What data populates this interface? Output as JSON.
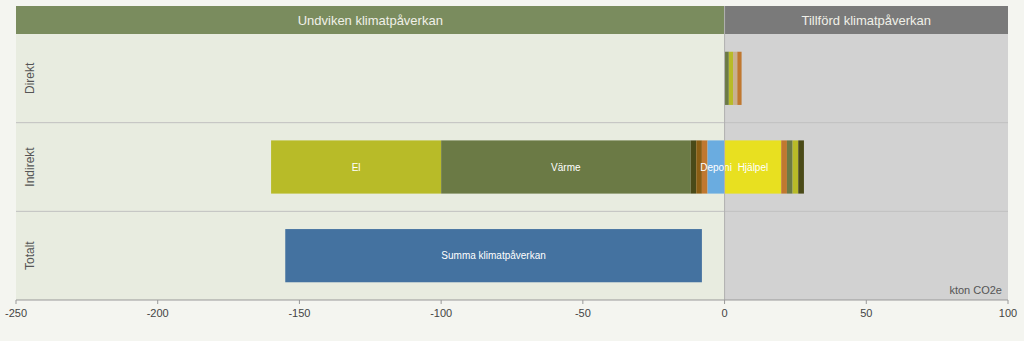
{
  "chart_data": {
    "type": "bar",
    "orientation": "horizontal",
    "xlabel": "kton CO2e",
    "categories": [
      "Direkt",
      "Indirekt",
      "Totalt"
    ],
    "xlim": [
      -250,
      100
    ],
    "xticks": [
      -250,
      -200,
      -150,
      -100,
      -50,
      0,
      50,
      100
    ],
    "divider": 0,
    "sections": [
      {
        "label": "Undviken klimatpåverkan",
        "color": "#7a8c5e",
        "background": "#e8ece0",
        "text_color": "#f0f0e8"
      },
      {
        "label": "Tillförd klimatpåverkan",
        "color": "#7a7a7a",
        "background": "#d2d2d2",
        "text_color": "#f0f0e8"
      }
    ],
    "bars": [
      {
        "category": "Direkt",
        "start": 0,
        "end": 1.5,
        "color": "#6b7a45"
      },
      {
        "category": "Direkt",
        "start": 1.5,
        "end": 3,
        "color": "#b8bb28"
      },
      {
        "category": "Direkt",
        "start": 3,
        "end": 4.5,
        "color": "#c8b090"
      },
      {
        "category": "Direkt",
        "start": 4.5,
        "end": 6,
        "color": "#c07830"
      },
      {
        "category": "Indirekt",
        "label": "El",
        "start": -160,
        "end": -100,
        "color": "#b8bb28",
        "text_color": "#ffffff"
      },
      {
        "category": "Indirekt",
        "label": "Värme",
        "start": -100,
        "end": -12,
        "color": "#6b7a45",
        "text_color": "#ffffff"
      },
      {
        "category": "Indirekt",
        "start": -12,
        "end": -10,
        "color": "#4a4a18"
      },
      {
        "category": "Indirekt",
        "start": -10,
        "end": -8,
        "color": "#8b5e14"
      },
      {
        "category": "Indirekt",
        "start": -8,
        "end": -6,
        "color": "#c07830"
      },
      {
        "category": "Indirekt",
        "label": "Deponi",
        "start": -6,
        "end": 0,
        "color": "#6aace0",
        "text_color": "#ffffff"
      },
      {
        "category": "Indirekt",
        "label": "Hjälpel",
        "start": 0,
        "end": 20,
        "color": "#e8e020",
        "text_color": "#ffffff"
      },
      {
        "category": "Indirekt",
        "start": 20,
        "end": 22,
        "color": "#c07830"
      },
      {
        "category": "Indirekt",
        "start": 22,
        "end": 24,
        "color": "#6b7a45"
      },
      {
        "category": "Indirekt",
        "start": 24,
        "end": 26,
        "color": "#b8bb28"
      },
      {
        "category": "Indirekt",
        "start": 26,
        "end": 28,
        "color": "#4a4a18"
      },
      {
        "category": "Totalt",
        "label": "Summa klimatpåverkan",
        "start": -155,
        "end": -8,
        "color": "#4472a0",
        "text_color": "#ffffff"
      }
    ]
  }
}
